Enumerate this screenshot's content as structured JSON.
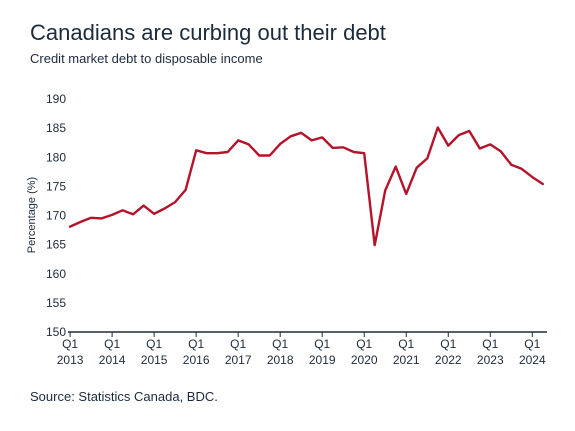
{
  "header": {
    "title": "Canadians are curbing out their debt",
    "subtitle": "Credit market debt to disposable income"
  },
  "footer": {
    "source": "Source: Statistics Canada, BDC."
  },
  "colors": {
    "line": "#b5132a",
    "axis": "#1c2b3c"
  },
  "chart_data": {
    "type": "line",
    "title": "Canadians are curbing out their debt",
    "subtitle": "Credit market debt to disposable income",
    "xlabel": "",
    "ylabel": "Percentage (%)",
    "ylim": [
      150,
      190
    ],
    "yticks": [
      150,
      155,
      160,
      165,
      170,
      175,
      180,
      185,
      190
    ],
    "xticks": [
      {
        "q": "Q1",
        "year": "2013",
        "x": 2013.0
      },
      {
        "q": "Q1",
        "year": "2014",
        "x": 2014.0
      },
      {
        "q": "Q1",
        "year": "2015",
        "x": 2015.0
      },
      {
        "q": "Q1",
        "year": "2016",
        "x": 2016.0
      },
      {
        "q": "Q1",
        "year": "2017",
        "x": 2017.0
      },
      {
        "q": "Q1",
        "year": "2018",
        "x": 2018.0
      },
      {
        "q": "Q1",
        "year": "2019",
        "x": 2019.0
      },
      {
        "q": "Q1",
        "year": "2020",
        "x": 2020.0
      },
      {
        "q": "Q1",
        "year": "2021",
        "x": 2021.0
      },
      {
        "q": "Q1",
        "year": "2022",
        "x": 2022.0
      },
      {
        "q": "Q1",
        "year": "2023",
        "x": 2023.0
      },
      {
        "q": "Q1",
        "year": "2024",
        "x": 2024.0
      }
    ],
    "grid": false,
    "series": [
      {
        "x": [
          2013.0,
          2013.25,
          2013.5,
          2013.75,
          2014.0,
          2014.25,
          2014.5,
          2014.75,
          2015.0,
          2015.25,
          2015.5,
          2015.75,
          2016.0,
          2016.25,
          2016.5,
          2016.75,
          2017.0,
          2017.25,
          2017.5,
          2017.75,
          2018.0,
          2018.25,
          2018.5,
          2018.75,
          2019.0,
          2019.25,
          2019.5,
          2019.75,
          2020.0,
          2020.25,
          2020.5,
          2020.75,
          2021.0,
          2021.25,
          2021.5,
          2021.75,
          2022.0,
          2022.25,
          2022.5,
          2022.75,
          2023.0,
          2023.25,
          2023.5,
          2023.75,
          2024.0,
          2024.25
        ],
        "values": [
          168.1,
          168.9,
          169.6,
          169.5,
          170.1,
          170.9,
          170.2,
          171.7,
          170.3,
          171.2,
          172.3,
          174.4,
          181.2,
          180.7,
          180.7,
          180.9,
          182.9,
          182.2,
          180.3,
          180.3,
          182.3,
          183.6,
          184.2,
          182.9,
          183.4,
          181.6,
          181.7,
          180.9,
          180.7,
          164.9,
          174.3,
          178.4,
          173.7,
          178.2,
          179.8,
          185.1,
          182.0,
          183.8,
          184.5,
          181.5,
          182.2,
          181.0,
          178.7,
          178.0,
          176.6,
          175.4
        ]
      }
    ]
  }
}
